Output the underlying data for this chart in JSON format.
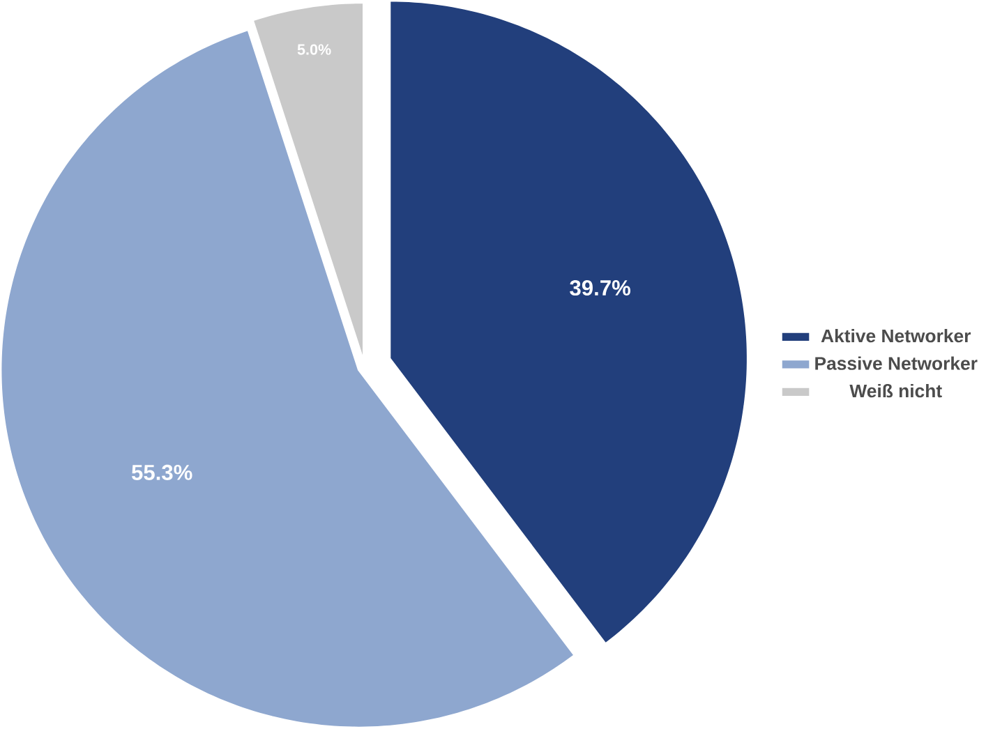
{
  "chart_data": {
    "type": "pie",
    "categories": [
      "Aktive Networker",
      "Passive Networker",
      "Weiß nicht"
    ],
    "values": [
      39.7,
      55.3,
      5.0
    ],
    "colors": [
      "#223f7c",
      "#8ea7cf",
      "#c9c9c9"
    ],
    "value_labels": [
      "39.7%",
      "55.3%",
      "5.0%"
    ],
    "legend": "right"
  }
}
